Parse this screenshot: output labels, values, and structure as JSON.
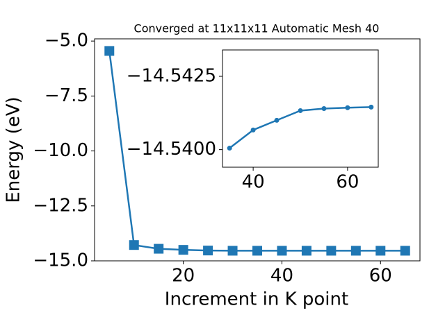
{
  "chart_data": [
    {
      "type": "line",
      "title": "Converged at 11x11x11 Automatic Mesh 40",
      "x_label": "Increment in K point",
      "y_label": "Energy (eV)",
      "x": [
        5,
        10,
        15,
        20,
        25,
        30,
        35,
        40,
        45,
        50,
        55,
        60,
        65
      ],
      "series": [
        {
          "color": "#1f77b4",
          "marker": "square",
          "values": [
            -5.45,
            -14.28,
            -14.45,
            -14.5,
            -14.53,
            -14.54,
            -14.54,
            -14.54,
            -14.54,
            -14.54,
            -14.54,
            -14.54,
            -14.54
          ]
        }
      ],
      "xlim": [
        2,
        68
      ],
      "xticks": [
        20,
        40,
        60
      ],
      "ylim": [
        -15.0,
        -4.9
      ],
      "yticks": [
        {
          "value": -15,
          "label": "−15.0"
        },
        {
          "value": -12.5,
          "label": "−12.5"
        },
        {
          "value": -10,
          "label": "−10.0"
        },
        {
          "value": -7.5,
          "label": "−7.5"
        },
        {
          "value": -5,
          "label": "−5.0"
        }
      ]
    },
    {
      "type": "line",
      "x": [
        35,
        40,
        45,
        50,
        55,
        60,
        65
      ],
      "series": [
        {
          "color": "#1f77b4",
          "marker": "circle",
          "values": [
            -14.54005,
            -14.54067,
            -14.541,
            -14.54133,
            -14.5414,
            -14.54143,
            -14.54145
          ]
        }
      ],
      "xlim": [
        33.5,
        66.5
      ],
      "xticks": [
        40,
        60
      ],
      "ylim": [
        -14.5394,
        -14.5434
      ],
      "yticks": [
        {
          "value": -14.54,
          "label": "−14.5400"
        },
        {
          "value": -14.5425,
          "label": "−14.5425"
        }
      ]
    }
  ]
}
